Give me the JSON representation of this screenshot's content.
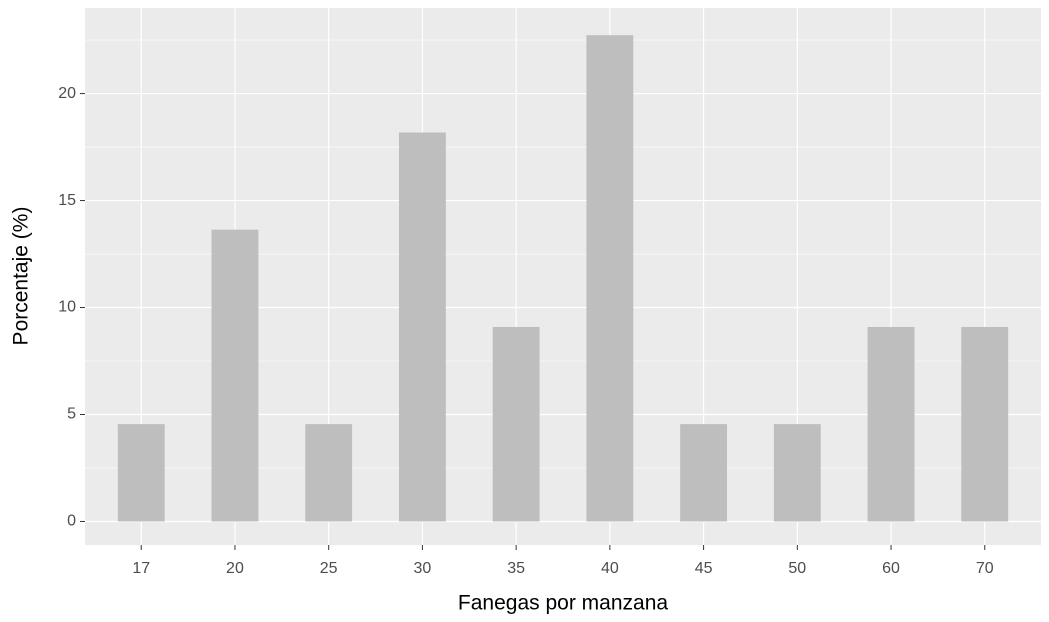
{
  "chart_data": {
    "type": "bar",
    "x_label": "Fanegas por manzana",
    "y_label": "Porcentaje (%)",
    "categories": [
      "17",
      "20",
      "25",
      "30",
      "35",
      "40",
      "45",
      "50",
      "60",
      "70"
    ],
    "values": [
      4.55,
      13.64,
      4.55,
      18.18,
      9.09,
      22.73,
      4.55,
      4.55,
      9.09,
      9.09
    ],
    "color": "#bebebe",
    "ylim": [
      -1.1,
      24.0
    ],
    "yticks": [
      0,
      5,
      10,
      15,
      20
    ],
    "grid": true
  }
}
